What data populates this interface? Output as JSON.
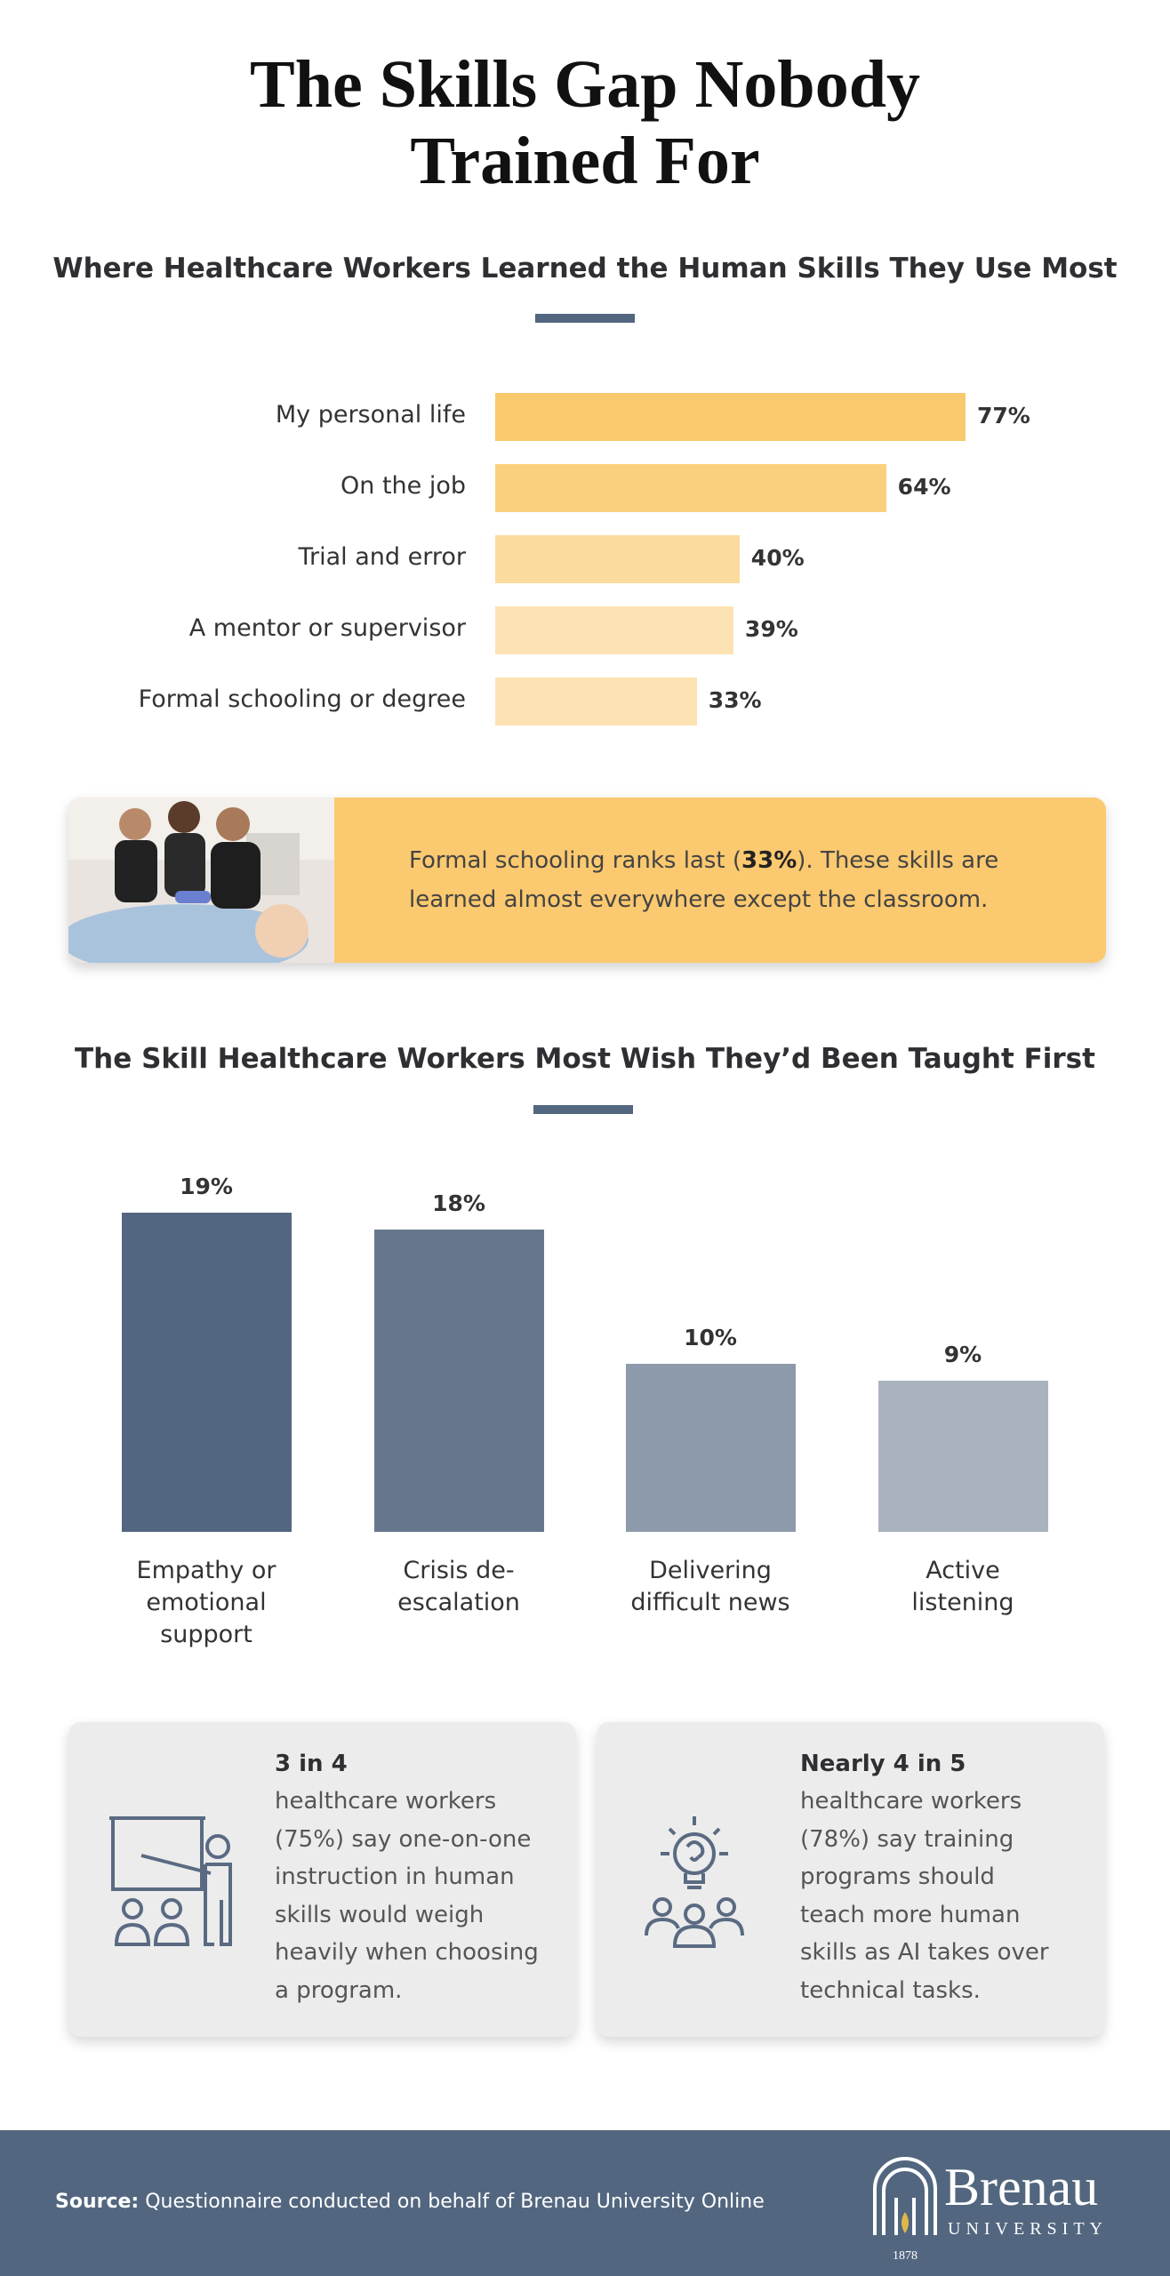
{
  "header": {
    "title": "The Skills Gap Nobody Trained For"
  },
  "chart_data": [
    {
      "type": "hbar",
      "title": "Where Healthcare Workers Learned the Human Skills They Use Most",
      "categories": [
        "My personal life",
        "On the job",
        "Trial and error",
        "A mentor or supervisor",
        "Formal schooling or degree"
      ],
      "values": [
        77,
        64,
        40,
        39,
        33
      ],
      "value_labels": [
        "77%",
        "64%",
        "40%",
        "39%",
        "33%"
      ],
      "colors": [
        "#f9c96e",
        "#fad07f",
        "#fcdb9f",
        "#fde3b3",
        "#fde3b3"
      ]
    },
    {
      "type": "bar",
      "title": "The Skill Healthcare Workers Most Wish They’d Been Taught First",
      "categories": [
        "Empathy or emotional support",
        "Crisis de-escalation",
        "Delivering difficult news",
        "Active listening"
      ],
      "values": [
        19,
        18,
        10,
        9
      ],
      "value_labels": [
        "19%",
        "18%",
        "10%",
        "9%"
      ],
      "colors": [
        "#52667f",
        "#66778d",
        "#8d9aab",
        "#a9b2bf"
      ]
    }
  ],
  "callout": {
    "text_before": "Formal schooling ranks last (",
    "text_bold": "33%",
    "text_after": "). These skills are learned almost everywhere except the classroom."
  },
  "stats": [
    {
      "heading": "3 in 4",
      "text": "healthcare workers (75%) say one-on-one instruction in human skills would weigh heavily when choosing a program."
    },
    {
      "heading": "Nearly 4 in 5",
      "text": "healthcare workers (78%) say training programs should teach more human skills as AI takes over technical tasks."
    }
  ],
  "footer": {
    "source_label": "Source:",
    "source_text": "Questionnaire conducted on behalf of Brenau University Online",
    "logo_name": "Brenau",
    "logo_sub": "UNIVERSITY",
    "logo_year": "1878"
  }
}
